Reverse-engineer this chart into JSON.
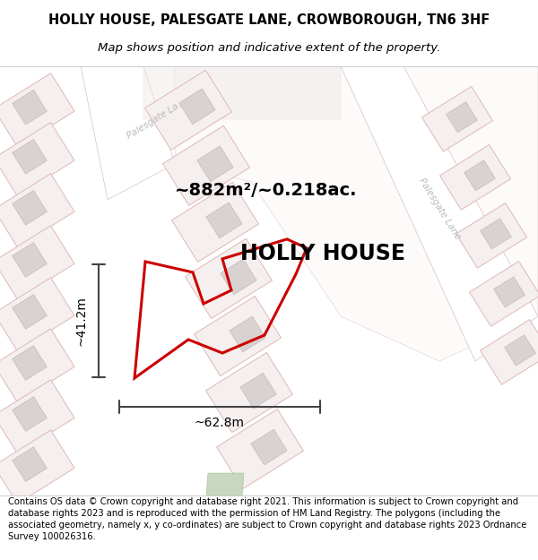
{
  "title_line1": "HOLLY HOUSE, PALESGATE LANE, CROWBOROUGH, TN6 3HF",
  "title_line2": "Map shows position and indicative extent of the property.",
  "footer_text": "Contains OS data © Crown copyright and database right 2021. This information is subject to Crown copyright and database rights 2023 and is reproduced with the permission of HM Land Registry. The polygons (including the associated geometry, namely x, y co-ordinates) are subject to Crown copyright and database rights 2023 Ordnance Survey 100026316.",
  "property_label": "HOLLY HOUSE",
  "area_label": "~882m²/~0.218ac.",
  "dim_width": "~62.8m",
  "dim_height": "~41.2m",
  "map_bg": "#faf7f7",
  "parcel_fill": "#f5efef",
  "parcel_edge": "#e0b8b8",
  "building_fill": "#d8d2d2",
  "building_edge": "#c8b8b8",
  "road_fill": "#ffffff",
  "road_edge": "#d8c0c0",
  "plot_edge": "#cc0000",
  "upper_road_fill": "#f0eaea",
  "green_fill": "#c8d8c0",
  "street_color": "#bbbbbb",
  "dim_line_color": "#444444",
  "title_fontsize": 10.5,
  "subtitle_fontsize": 9.5,
  "footer_fontsize": 7.2,
  "label_fontsize": 17,
  "area_fontsize": 14,
  "dim_fontsize": 10
}
